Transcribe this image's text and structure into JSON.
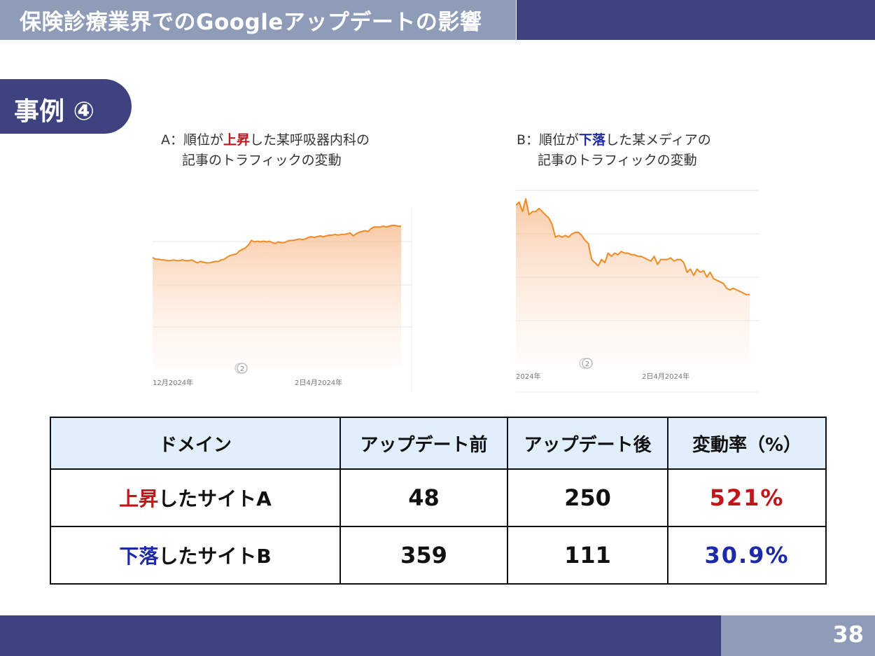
{
  "header": {
    "title": "保険診療業界でのGoogleアップデートの影響"
  },
  "case_label": "事例 ④",
  "captions": {
    "a": {
      "prefix": "A：順位が",
      "highlight": "上昇",
      "suffix": "した某呼吸器内科の",
      "line2": "記事のトラフィックの変動"
    },
    "b": {
      "prefix": "B：順位が",
      "highlight": "下落",
      "suffix": "した某メディアの",
      "line2": "記事のトラフィックの変動"
    }
  },
  "chart_data": [
    {
      "type": "area",
      "x_labels": [
        "12月2024年",
        "2日4月2024年"
      ],
      "marker": "2",
      "grid": true,
      "y": [
        57,
        55,
        55,
        54,
        54,
        53,
        53,
        54,
        53,
        53,
        54,
        53,
        53,
        54,
        52,
        50,
        52,
        51,
        50,
        50,
        51,
        52,
        52,
        54,
        55,
        58,
        60,
        61,
        62,
        66,
        68,
        70,
        74,
        80,
        78,
        79,
        78,
        79,
        78,
        79,
        77,
        76,
        78,
        77,
        77,
        79,
        80,
        80,
        81,
        82,
        81,
        82,
        84,
        85,
        84,
        85,
        86,
        85,
        86,
        87,
        87,
        88,
        87,
        88,
        88,
        89,
        90,
        86,
        89,
        91,
        92,
        93,
        92,
        96,
        98,
        98,
        98,
        99,
        98,
        99,
        100,
        100,
        99,
        99
      ]
    },
    {
      "type": "area",
      "x_labels": [
        "2024年",
        "2日4月2024年"
      ],
      "marker": "2",
      "grid": true,
      "y": [
        96,
        98,
        92,
        100,
        90,
        92,
        92,
        94,
        92,
        90,
        88,
        84,
        76,
        77,
        76,
        77,
        76,
        78,
        79,
        79,
        77,
        74,
        72,
        62,
        60,
        58,
        62,
        60,
        66,
        64,
        66,
        65,
        67,
        66,
        66,
        65,
        65,
        64,
        64,
        63,
        62,
        61,
        64,
        59,
        62,
        62,
        62,
        63,
        61,
        62,
        62,
        60,
        54,
        56,
        52,
        56,
        54,
        55,
        51,
        54,
        50,
        49,
        48,
        47,
        44,
        43,
        44,
        43,
        42,
        41,
        40,
        40
      ]
    }
  ],
  "table": {
    "headers": [
      "ドメイン",
      "アップデート前",
      "アップデート後",
      "変動率（%）"
    ],
    "rows": [
      {
        "highlight": "上昇",
        "rest": "したサイトA",
        "before": "48",
        "after": "250",
        "rate": "521%"
      },
      {
        "highlight": "下落",
        "rest": "したサイトB",
        "before": "359",
        "after": "111",
        "rate": "30.9%"
      }
    ]
  },
  "page_number": "38",
  "colors": {
    "navy": "#3e4380",
    "slate": "#8f9cb8",
    "accent_red": "#c0161b",
    "accent_blue": "#1c2aa8",
    "line": "#f08a24",
    "header_fill": "#e1eefc"
  }
}
